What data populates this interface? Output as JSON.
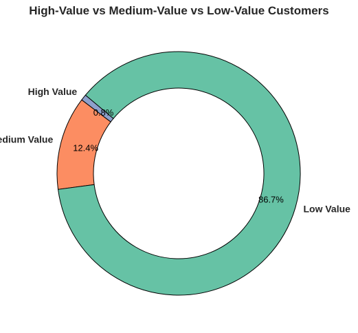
{
  "chart_data": {
    "type": "pie",
    "title": "High-Value vs Medium-Value vs Low-Value Customers",
    "categories": [
      "High Value",
      "Medium Value",
      "Low Value"
    ],
    "values": [
      0.8,
      12.4,
      86.7
    ],
    "value_labels": [
      "0.8%",
      "12.4%",
      "86.7%"
    ],
    "colors": [
      "#8da0cb",
      "#fc8d62",
      "#66c2a5"
    ],
    "start_angle_deg": 140,
    "counterclockwise": true,
    "donut": true,
    "legend": "none"
  }
}
